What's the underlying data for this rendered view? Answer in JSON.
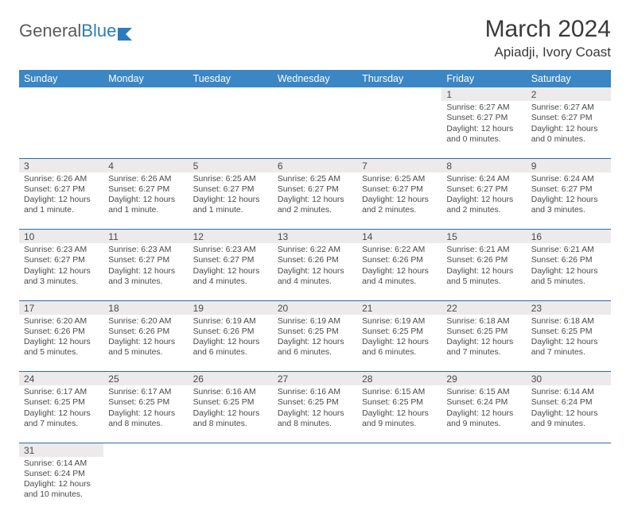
{
  "logo": {
    "part1": "General",
    "part2": "Blue"
  },
  "title": "March 2024",
  "location": "Apiadji, Ivory Coast",
  "colors": {
    "header_bg": "#3b86c4",
    "header_text": "#ffffff",
    "daynum_bg": "#eceaea",
    "rule": "#2d6ca8",
    "body_text": "#4a4a4a"
  },
  "weekdays": [
    "Sunday",
    "Monday",
    "Tuesday",
    "Wednesday",
    "Thursday",
    "Friday",
    "Saturday"
  ],
  "weeks": [
    {
      "nums": [
        "",
        "",
        "",
        "",
        "",
        "1",
        "2"
      ],
      "cells": [
        null,
        null,
        null,
        null,
        null,
        {
          "sunrise": "Sunrise: 6:27 AM",
          "sunset": "Sunset: 6:27 PM",
          "day1": "Daylight: 12 hours",
          "day2": "and 0 minutes."
        },
        {
          "sunrise": "Sunrise: 6:27 AM",
          "sunset": "Sunset: 6:27 PM",
          "day1": "Daylight: 12 hours",
          "day2": "and 0 minutes."
        }
      ]
    },
    {
      "nums": [
        "3",
        "4",
        "5",
        "6",
        "7",
        "8",
        "9"
      ],
      "cells": [
        {
          "sunrise": "Sunrise: 6:26 AM",
          "sunset": "Sunset: 6:27 PM",
          "day1": "Daylight: 12 hours",
          "day2": "and 1 minute."
        },
        {
          "sunrise": "Sunrise: 6:26 AM",
          "sunset": "Sunset: 6:27 PM",
          "day1": "Daylight: 12 hours",
          "day2": "and 1 minute."
        },
        {
          "sunrise": "Sunrise: 6:25 AM",
          "sunset": "Sunset: 6:27 PM",
          "day1": "Daylight: 12 hours",
          "day2": "and 1 minute."
        },
        {
          "sunrise": "Sunrise: 6:25 AM",
          "sunset": "Sunset: 6:27 PM",
          "day1": "Daylight: 12 hours",
          "day2": "and 2 minutes."
        },
        {
          "sunrise": "Sunrise: 6:25 AM",
          "sunset": "Sunset: 6:27 PM",
          "day1": "Daylight: 12 hours",
          "day2": "and 2 minutes."
        },
        {
          "sunrise": "Sunrise: 6:24 AM",
          "sunset": "Sunset: 6:27 PM",
          "day1": "Daylight: 12 hours",
          "day2": "and 2 minutes."
        },
        {
          "sunrise": "Sunrise: 6:24 AM",
          "sunset": "Sunset: 6:27 PM",
          "day1": "Daylight: 12 hours",
          "day2": "and 3 minutes."
        }
      ]
    },
    {
      "nums": [
        "10",
        "11",
        "12",
        "13",
        "14",
        "15",
        "16"
      ],
      "cells": [
        {
          "sunrise": "Sunrise: 6:23 AM",
          "sunset": "Sunset: 6:27 PM",
          "day1": "Daylight: 12 hours",
          "day2": "and 3 minutes."
        },
        {
          "sunrise": "Sunrise: 6:23 AM",
          "sunset": "Sunset: 6:27 PM",
          "day1": "Daylight: 12 hours",
          "day2": "and 3 minutes."
        },
        {
          "sunrise": "Sunrise: 6:23 AM",
          "sunset": "Sunset: 6:27 PM",
          "day1": "Daylight: 12 hours",
          "day2": "and 4 minutes."
        },
        {
          "sunrise": "Sunrise: 6:22 AM",
          "sunset": "Sunset: 6:26 PM",
          "day1": "Daylight: 12 hours",
          "day2": "and 4 minutes."
        },
        {
          "sunrise": "Sunrise: 6:22 AM",
          "sunset": "Sunset: 6:26 PM",
          "day1": "Daylight: 12 hours",
          "day2": "and 4 minutes."
        },
        {
          "sunrise": "Sunrise: 6:21 AM",
          "sunset": "Sunset: 6:26 PM",
          "day1": "Daylight: 12 hours",
          "day2": "and 5 minutes."
        },
        {
          "sunrise": "Sunrise: 6:21 AM",
          "sunset": "Sunset: 6:26 PM",
          "day1": "Daylight: 12 hours",
          "day2": "and 5 minutes."
        }
      ]
    },
    {
      "nums": [
        "17",
        "18",
        "19",
        "20",
        "21",
        "22",
        "23"
      ],
      "cells": [
        {
          "sunrise": "Sunrise: 6:20 AM",
          "sunset": "Sunset: 6:26 PM",
          "day1": "Daylight: 12 hours",
          "day2": "and 5 minutes."
        },
        {
          "sunrise": "Sunrise: 6:20 AM",
          "sunset": "Sunset: 6:26 PM",
          "day1": "Daylight: 12 hours",
          "day2": "and 5 minutes."
        },
        {
          "sunrise": "Sunrise: 6:19 AM",
          "sunset": "Sunset: 6:26 PM",
          "day1": "Daylight: 12 hours",
          "day2": "and 6 minutes."
        },
        {
          "sunrise": "Sunrise: 6:19 AM",
          "sunset": "Sunset: 6:25 PM",
          "day1": "Daylight: 12 hours",
          "day2": "and 6 minutes."
        },
        {
          "sunrise": "Sunrise: 6:19 AM",
          "sunset": "Sunset: 6:25 PM",
          "day1": "Daylight: 12 hours",
          "day2": "and 6 minutes."
        },
        {
          "sunrise": "Sunrise: 6:18 AM",
          "sunset": "Sunset: 6:25 PM",
          "day1": "Daylight: 12 hours",
          "day2": "and 7 minutes."
        },
        {
          "sunrise": "Sunrise: 6:18 AM",
          "sunset": "Sunset: 6:25 PM",
          "day1": "Daylight: 12 hours",
          "day2": "and 7 minutes."
        }
      ]
    },
    {
      "nums": [
        "24",
        "25",
        "26",
        "27",
        "28",
        "29",
        "30"
      ],
      "cells": [
        {
          "sunrise": "Sunrise: 6:17 AM",
          "sunset": "Sunset: 6:25 PM",
          "day1": "Daylight: 12 hours",
          "day2": "and 7 minutes."
        },
        {
          "sunrise": "Sunrise: 6:17 AM",
          "sunset": "Sunset: 6:25 PM",
          "day1": "Daylight: 12 hours",
          "day2": "and 8 minutes."
        },
        {
          "sunrise": "Sunrise: 6:16 AM",
          "sunset": "Sunset: 6:25 PM",
          "day1": "Daylight: 12 hours",
          "day2": "and 8 minutes."
        },
        {
          "sunrise": "Sunrise: 6:16 AM",
          "sunset": "Sunset: 6:25 PM",
          "day1": "Daylight: 12 hours",
          "day2": "and 8 minutes."
        },
        {
          "sunrise": "Sunrise: 6:15 AM",
          "sunset": "Sunset: 6:25 PM",
          "day1": "Daylight: 12 hours",
          "day2": "and 9 minutes."
        },
        {
          "sunrise": "Sunrise: 6:15 AM",
          "sunset": "Sunset: 6:24 PM",
          "day1": "Daylight: 12 hours",
          "day2": "and 9 minutes."
        },
        {
          "sunrise": "Sunrise: 6:14 AM",
          "sunset": "Sunset: 6:24 PM",
          "day1": "Daylight: 12 hours",
          "day2": "and 9 minutes."
        }
      ]
    },
    {
      "nums": [
        "31",
        "",
        "",
        "",
        "",
        "",
        ""
      ],
      "cells": [
        {
          "sunrise": "Sunrise: 6:14 AM",
          "sunset": "Sunset: 6:24 PM",
          "day1": "Daylight: 12 hours",
          "day2": "and 10 minutes."
        },
        null,
        null,
        null,
        null,
        null,
        null
      ]
    }
  ]
}
